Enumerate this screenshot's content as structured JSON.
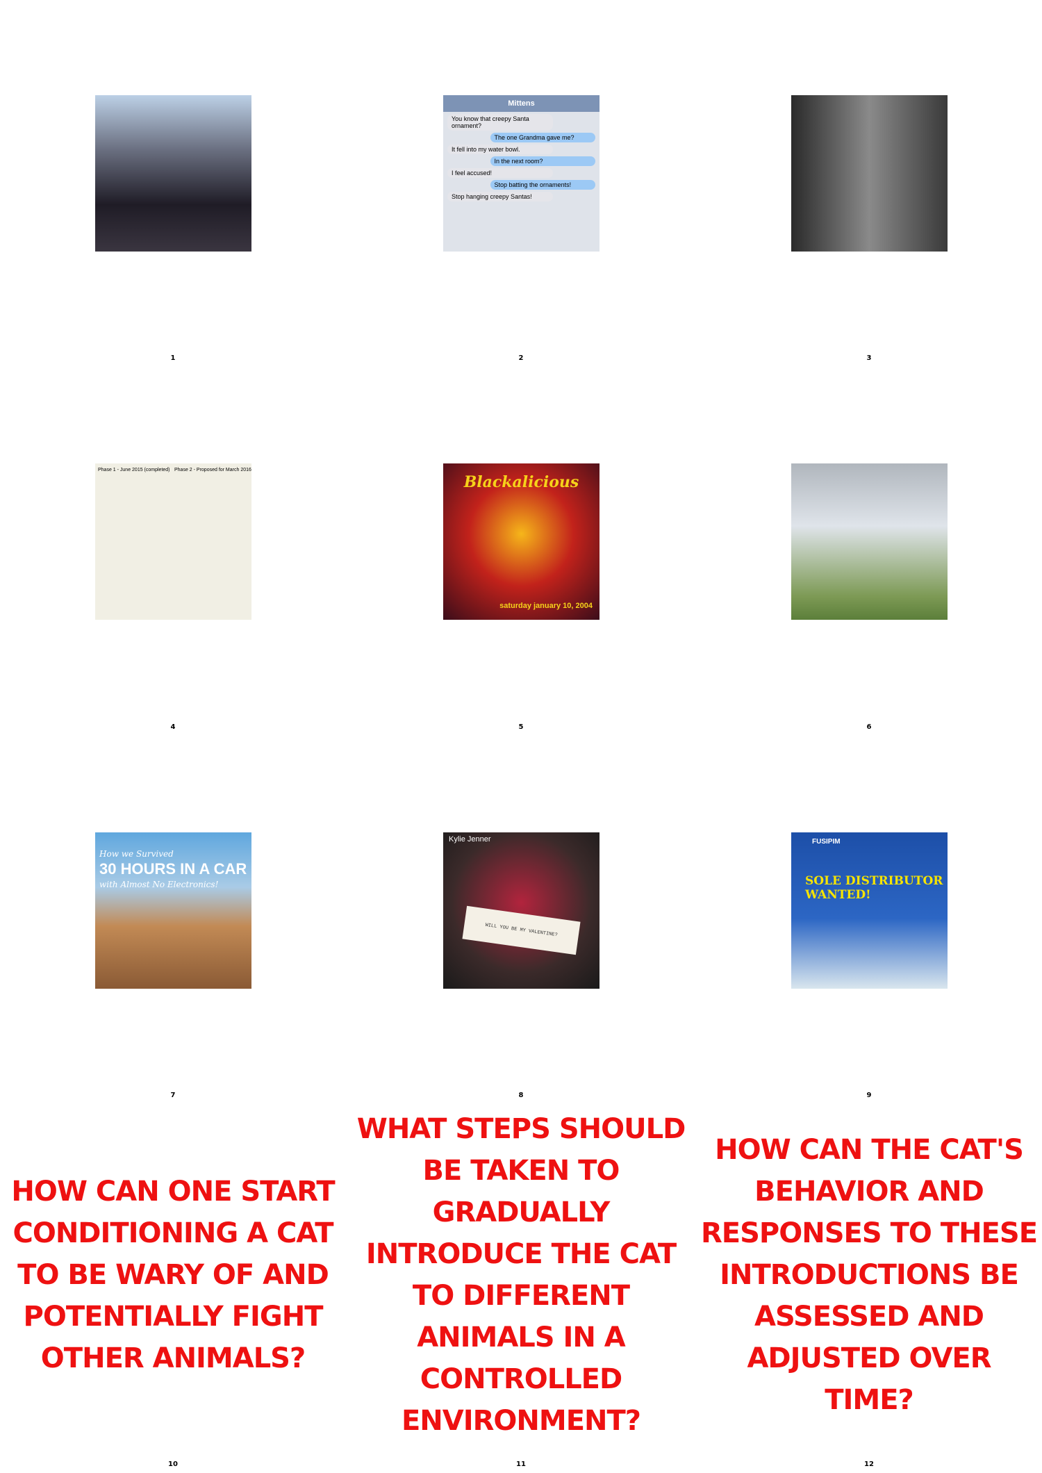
{
  "panels": [
    {
      "number": "1"
    },
    {
      "number": "2",
      "image_title": "Mittens",
      "image_text": [
        "You know that creepy Santa ornament?",
        "The one Grandma gave me?",
        "It fell into my water bowl.",
        "In the next room?",
        "I feel accused!",
        "Stop batting the ornaments!",
        "Stop hanging creepy Santas!"
      ]
    },
    {
      "number": "3"
    },
    {
      "number": "4",
      "image_text": [
        "Phase 1 - June 2015 (completed)",
        "Phase 2 - Proposed for March 2016"
      ]
    },
    {
      "number": "5",
      "image_title": "Blackalicious",
      "image_text": [
        "saturday january 10, 2004"
      ]
    },
    {
      "number": "6"
    },
    {
      "number": "7",
      "image_title": "30 HOURS IN A CAR",
      "image_text": [
        "How we Survived",
        "with Almost No Electronics!"
      ]
    },
    {
      "number": "8",
      "image_title": "Kylie Jenner",
      "image_text": [
        "WILL YOU BE MY VALENTINE?"
      ]
    },
    {
      "number": "9",
      "image_title": "SOLE DISTRIBUTOR WANTED!",
      "image_text": [
        "FUSIPIM"
      ]
    },
    {
      "number": "10",
      "question": "HOW CAN ONE START CONDITIONING A CAT TO BE WARY OF AND POTENTIALLY FIGHT OTHER ANIMALS?"
    },
    {
      "number": "11",
      "question": "WHAT STEPS SHOULD BE TAKEN TO GRADUALLY INTRODUCE THE CAT TO DIFFERENT ANIMALS IN A CONTROLLED ENVIRONMENT?"
    },
    {
      "number": "12",
      "question": "HOW CAN THE CAT'S BEHAVIOR AND RESPONSES TO THESE INTRODUCTIONS BE ASSESSED AND ADJUSTED OVER TIME?"
    }
  ]
}
